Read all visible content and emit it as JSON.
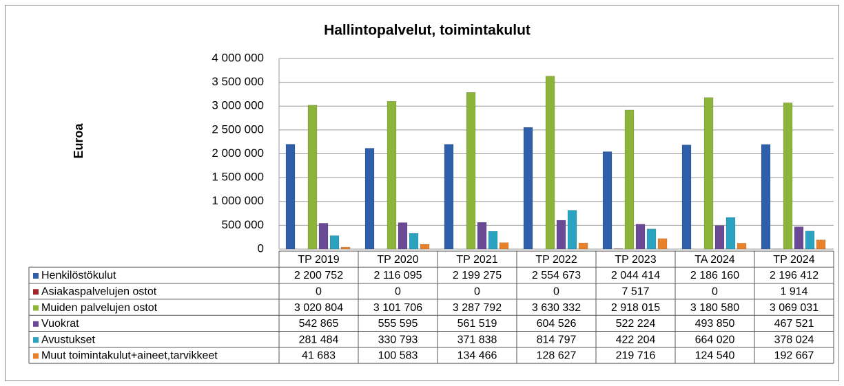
{
  "chart_data": {
    "type": "bar",
    "title": "Hallintopalvelut, toimintakulut",
    "y_label": "Euroa",
    "categories": [
      "TP 2019",
      "TP 2020",
      "TP 2021",
      "TP 2022",
      "TP 2023",
      "TA 2024",
      "TP 2024"
    ],
    "series": [
      {
        "name": "Henkilöstökulut",
        "color": "#2e5fa8",
        "values": [
          2200752,
          2116095,
          2199275,
          2554673,
          2044414,
          2186160,
          2196412
        ],
        "value_labels": [
          "2 200 752",
          "2 116 095",
          "2 199 275",
          "2 554 673",
          "2 044 414",
          "2 186 160",
          "2 196 412"
        ]
      },
      {
        "name": "Asiakaspalvelujen ostot",
        "color": "#a0262a",
        "values": [
          0,
          0,
          0,
          0,
          7517,
          0,
          1914
        ],
        "value_labels": [
          "0",
          "0",
          "0",
          "0",
          "7 517",
          "0",
          "1 914"
        ]
      },
      {
        "name": "Muiden palvelujen ostot",
        "color": "#8cb33a",
        "values": [
          3020804,
          3101706,
          3287792,
          3630332,
          2918015,
          3180580,
          3069031
        ],
        "value_labels": [
          "3 020 804",
          "3 101 706",
          "3 287 792",
          "3 630 332",
          "2 918 015",
          "3 180 580",
          "3 069 031"
        ]
      },
      {
        "name": "Vuokrat",
        "color": "#6a4a96",
        "values": [
          542865,
          555595,
          561519,
          604526,
          522224,
          493850,
          467521
        ],
        "value_labels": [
          "542 865",
          "555 595",
          "561 519",
          "604 526",
          "522 224",
          "493 850",
          "467 521"
        ]
      },
      {
        "name": "Avustukset",
        "color": "#2ba3c0",
        "values": [
          281484,
          330793,
          371838,
          814797,
          422204,
          664020,
          378024
        ],
        "value_labels": [
          "281 484",
          "330 793",
          "371 838",
          "814 797",
          "422 204",
          "664 020",
          "378 024"
        ]
      },
      {
        "name": "Muut toimintakulut+aineet,tarvikkeet",
        "color": "#e8822a",
        "values": [
          41683,
          100583,
          134466,
          128627,
          219716,
          124540,
          192667
        ],
        "value_labels": [
          "41 683",
          "100 583",
          "134 466",
          "128 627",
          "219 716",
          "124 540",
          "192 667"
        ]
      }
    ],
    "ylim": [
      0,
      4000000
    ],
    "yticks": [
      0,
      {
        "value": 500000,
        "label": "500 000"
      },
      {
        "value": 1000000,
        "label": "1 000 000"
      },
      {
        "value": 1500000,
        "label": "1 500 000"
      },
      {
        "value": 2000000,
        "label": "2 000 000"
      },
      {
        "value": 2500000,
        "label": "2 500 000"
      },
      {
        "value": 3000000,
        "label": "3 000 000"
      },
      {
        "value": 3500000,
        "label": "3 500 000"
      },
      {
        "value": 4000000,
        "label": "4 000 000"
      }
    ],
    "grid": true
  }
}
